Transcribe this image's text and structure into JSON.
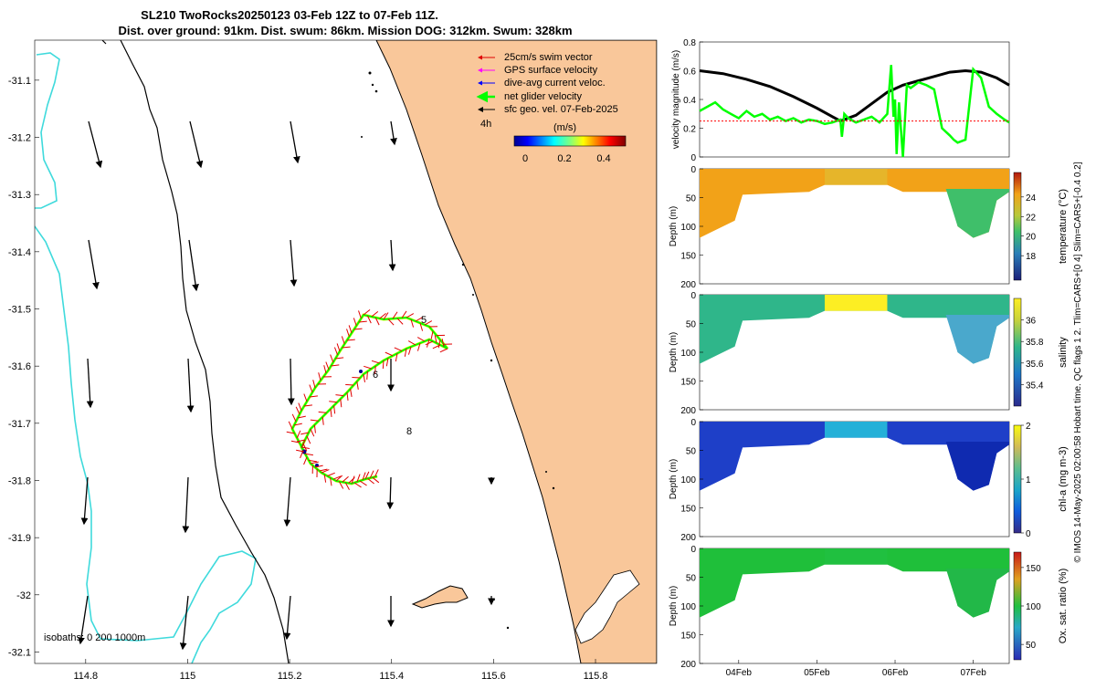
{
  "title": {
    "line1": "SL210 TwoRocks20250123 03-Feb 12Z to 07-Feb 11Z.",
    "line2": "Dist. over ground: 91km. Dist. swum: 86km. Mission DOG: 312km. Swum: 328km"
  },
  "colors": {
    "land": "#f9c79a",
    "coast": "#000000",
    "isobath_200": "#000000",
    "isobath_1000": "#3fdadc",
    "track": "#00ff00",
    "swim": "#ff0000",
    "gps": "#ff00ff",
    "dive": "#0000ff"
  },
  "map": {
    "x_ticks": [
      "114.8",
      "115",
      "115.2",
      "115.4",
      "115.6",
      "115.8"
    ],
    "y_ticks": [
      "-31.1",
      "-31.2",
      "-31.3",
      "-31.4",
      "-31.5",
      "-31.6",
      "-31.7",
      "-31.8",
      "-31.9",
      "-32",
      "-32.1"
    ],
    "xlim": [
      114.7,
      115.92
    ],
    "ylim": [
      -32.12,
      -31.03
    ],
    "legend": {
      "items": [
        "25cm/s swim vector",
        "GPS surface velocity",
        "dive-avg current veloc.",
        "net glider velocity",
        "sfc geo. vel. 07-Feb-2025"
      ],
      "interval": "4h",
      "colorbar_label": "(m/s)",
      "colorbar_ticks": [
        "0",
        "0.2",
        "0.4"
      ]
    },
    "day_labels": [
      "5",
      "6",
      "8"
    ],
    "isobath_label": "isobaths: 0    200  1000m"
  },
  "chart_data": [
    {
      "type": "line",
      "title": "",
      "xlabel": "",
      "ylabel": "velocity magnitude (m/s)",
      "ylim": [
        0,
        0.8
      ],
      "y_ticks": [
        "0",
        "0.2",
        "0.4",
        "0.6",
        "0.8"
      ],
      "x_days": [
        3.5,
        7.46
      ],
      "series": [
        {
          "name": "sfc geo. vel.",
          "color": "#000000",
          "x": [
            3.5,
            3.8,
            4.1,
            4.4,
            4.7,
            5.0,
            5.2,
            5.3,
            5.5,
            5.7,
            5.9,
            6.1,
            6.3,
            6.5,
            6.7,
            6.9,
            7.1,
            7.3,
            7.46
          ],
          "y": [
            0.6,
            0.58,
            0.54,
            0.49,
            0.42,
            0.34,
            0.28,
            0.25,
            0.29,
            0.37,
            0.45,
            0.5,
            0.53,
            0.56,
            0.59,
            0.6,
            0.59,
            0.55,
            0.5
          ]
        },
        {
          "name": "net glider velocity",
          "color": "#00ff00",
          "x": [
            3.5,
            3.6,
            3.7,
            3.8,
            3.9,
            4.0,
            4.1,
            4.2,
            4.3,
            4.4,
            4.5,
            4.6,
            4.7,
            4.8,
            4.9,
            5.0,
            5.1,
            5.2,
            5.3,
            5.32,
            5.35,
            5.4,
            5.5,
            5.6,
            5.7,
            5.8,
            5.9,
            5.95,
            5.98,
            6.0,
            6.02,
            6.05,
            6.1,
            6.15,
            6.2,
            6.3,
            6.4,
            6.5,
            6.6,
            6.7,
            6.75,
            6.8,
            6.85,
            6.9,
            7.0,
            7.1,
            7.2,
            7.3,
            7.4,
            7.46
          ],
          "y": [
            0.32,
            0.35,
            0.38,
            0.33,
            0.3,
            0.27,
            0.32,
            0.28,
            0.3,
            0.26,
            0.28,
            0.25,
            0.27,
            0.24,
            0.26,
            0.25,
            0.23,
            0.24,
            0.26,
            0.14,
            0.3,
            0.27,
            0.24,
            0.26,
            0.28,
            0.24,
            0.3,
            0.64,
            0.28,
            0.4,
            0.02,
            0.38,
            0.0,
            0.5,
            0.48,
            0.52,
            0.5,
            0.47,
            0.2,
            0.15,
            0.12,
            0.1,
            0.11,
            0.12,
            0.61,
            0.55,
            0.35,
            0.3,
            0.26,
            0.24
          ]
        },
        {
          "name": "swim vector",
          "color": "#ff0000",
          "x": [
            3.5,
            7.46
          ],
          "y": [
            0.25,
            0.25
          ]
        }
      ]
    },
    {
      "type": "heatmap",
      "ylabel": "Depth (m)",
      "clabel": "temperature (°C)",
      "ylim": [
        200,
        0
      ],
      "y_ticks": [
        "0",
        "50",
        "100",
        "150",
        "200"
      ],
      "clim": [
        15.5,
        26.5
      ],
      "cticks": [
        "18",
        "20",
        "22",
        "24"
      ]
    },
    {
      "type": "heatmap",
      "ylabel": "Depth (m)",
      "clabel": "salinity",
      "ylim": [
        200,
        0
      ],
      "y_ticks": [
        "0",
        "50",
        "100",
        "150",
        "200"
      ],
      "clim": [
        35.2,
        36.2
      ],
      "cticks": [
        "35.4",
        "35.6",
        "35.8",
        "36"
      ]
    },
    {
      "type": "heatmap",
      "ylabel": "Depth (m)",
      "clabel": "chl-a (mg m-3)",
      "ylim": [
        200,
        0
      ],
      "y_ticks": [
        "0",
        "50",
        "100",
        "150",
        "200"
      ],
      "clim": [
        0,
        2
      ],
      "cticks": [
        "0",
        "1",
        "2"
      ]
    },
    {
      "type": "heatmap",
      "ylabel": "Depth (m)",
      "clabel": "Ox. sat. ratio (%)",
      "ylim": [
        200,
        0
      ],
      "y_ticks": [
        "0",
        "50",
        "100",
        "150",
        "200"
      ],
      "clim": [
        30,
        170
      ],
      "cticks": [
        "50",
        "100",
        "150"
      ]
    }
  ],
  "time_axis": {
    "ticks": [
      "04Feb",
      "05Feb",
      "06Feb",
      "07Feb"
    ]
  },
  "side_caption": "© IMOS 14-May-2025 02:00:58 Hobart time. QC flags 1  2. Tlim=CARS+[0 4] Slim=CARS+[-0.4 0.2]"
}
